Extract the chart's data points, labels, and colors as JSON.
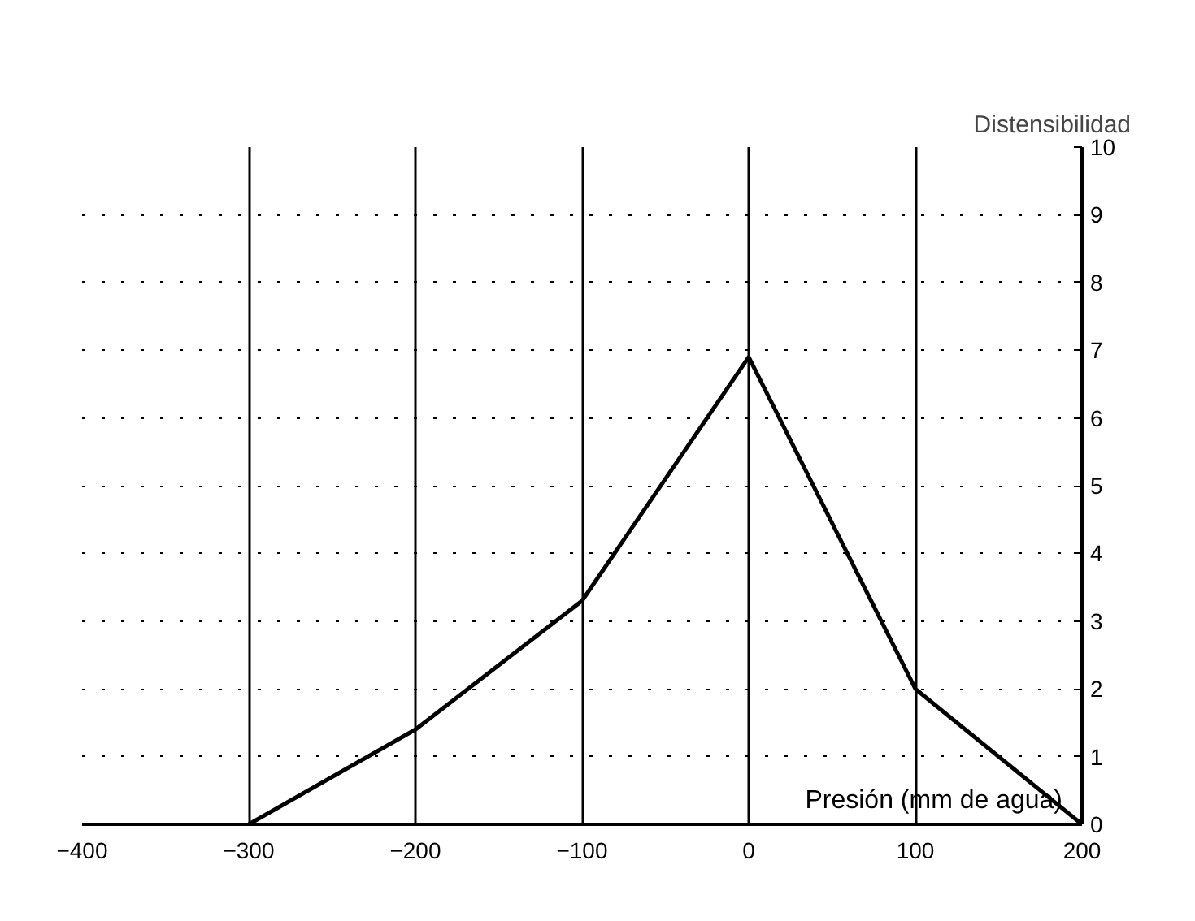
{
  "chart_data": {
    "type": "line",
    "xlabel": "Presión (mm de agua)",
    "ylabel": "Distensibilidad",
    "x": [
      -300,
      -200,
      -100,
      0,
      100,
      200
    ],
    "series": [
      {
        "color": "#000000",
        "values": [
          0,
          1.4,
          3.3,
          6.9,
          2.0,
          0
        ]
      }
    ],
    "xlim": [
      -400,
      200
    ],
    "xticks": [
      -400,
      -300,
      -200,
      -100,
      0,
      100,
      200
    ],
    "ylim": [
      0,
      10
    ],
    "yticks": [
      0,
      1,
      2,
      3,
      4,
      5,
      6,
      7,
      8,
      9,
      10
    ],
    "grid": true,
    "marker": "none",
    "line_style": "solid"
  }
}
